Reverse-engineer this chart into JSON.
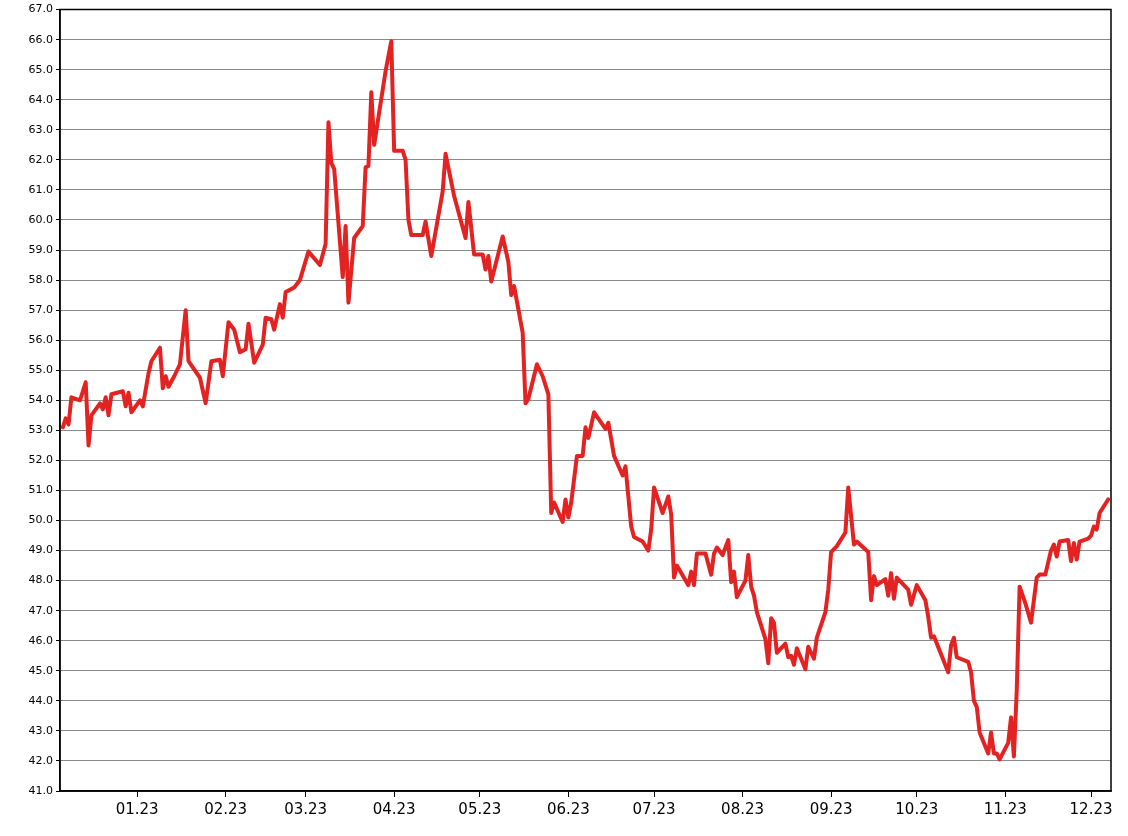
{
  "chart_data": {
    "type": "line",
    "color": "#e32222",
    "marker": "none",
    "line_style": "solid",
    "grid": "y",
    "legend": false,
    "xlim": [
      "2022-12-05",
      "2023-12-08"
    ],
    "xticks": [
      {
        "value": "2023-01-01",
        "label": "01.23"
      },
      {
        "value": "2023-02-01",
        "label": "02.23"
      },
      {
        "value": "2023-03-01",
        "label": "03.23"
      },
      {
        "value": "2023-04-01",
        "label": "04.23"
      },
      {
        "value": "2023-05-01",
        "label": "05.23"
      },
      {
        "value": "2023-06-01",
        "label": "06.23"
      },
      {
        "value": "2023-07-01",
        "label": "07.23"
      },
      {
        "value": "2023-08-01",
        "label": "08.23"
      },
      {
        "value": "2023-09-01",
        "label": "09.23"
      },
      {
        "value": "2023-10-01",
        "label": "10.23"
      },
      {
        "value": "2023-11-01",
        "label": "11.23"
      },
      {
        "value": "2023-12-01",
        "label": "12.23"
      }
    ],
    "ylim": [
      41,
      67
    ],
    "yticks": [
      {
        "value": 41,
        "label": "41.0"
      },
      {
        "value": 42,
        "label": "42.0"
      },
      {
        "value": 43,
        "label": "43.0"
      },
      {
        "value": 44,
        "label": "44.0"
      },
      {
        "value": 45,
        "label": "45.0"
      },
      {
        "value": 46,
        "label": "46.0"
      },
      {
        "value": 47,
        "label": "47.0"
      },
      {
        "value": 48,
        "label": "48.0"
      },
      {
        "value": 49,
        "label": "49.0"
      },
      {
        "value": 50,
        "label": "50.0"
      },
      {
        "value": 51,
        "label": "51.0"
      },
      {
        "value": 52,
        "label": "52.0"
      },
      {
        "value": 53,
        "label": "53.0"
      },
      {
        "value": 54,
        "label": "54.0"
      },
      {
        "value": 55,
        "label": "55.0"
      },
      {
        "value": 56,
        "label": "56.0"
      },
      {
        "value": 57,
        "label": "57.0"
      },
      {
        "value": 58,
        "label": "58.0"
      },
      {
        "value": 59,
        "label": "59.0"
      },
      {
        "value": 60,
        "label": "60.0"
      },
      {
        "value": 61,
        "label": "61.0"
      },
      {
        "value": 62,
        "label": "62.0"
      },
      {
        "value": 63,
        "label": "63.0"
      },
      {
        "value": 64,
        "label": "64.0"
      },
      {
        "value": 65,
        "label": "65.0"
      },
      {
        "value": 66,
        "label": "66.0"
      },
      {
        "value": 67,
        "label": "67.0"
      }
    ],
    "x": [
      "2022-12-06",
      "2022-12-07",
      "2022-12-08",
      "2022-12-09",
      "2022-12-12",
      "2022-12-14",
      "2022-12-15",
      "2022-12-16",
      "2022-12-19",
      "2022-12-20",
      "2022-12-21",
      "2022-12-22",
      "2022-12-23",
      "2022-12-27",
      "2022-12-28",
      "2022-12-29",
      "2022-12-30",
      "2023-01-02",
      "2023-01-03",
      "2023-01-05",
      "2023-01-06",
      "2023-01-09",
      "2023-01-10",
      "2023-01-11",
      "2023-01-12",
      "2023-01-14",
      "2023-01-16",
      "2023-01-18",
      "2023-01-19",
      "2023-01-23",
      "2023-01-25",
      "2023-01-27",
      "2023-01-30",
      "2023-01-31",
      "2023-02-02",
      "2023-02-04",
      "2023-02-06",
      "2023-02-08",
      "2023-02-09",
      "2023-02-11",
      "2023-02-14",
      "2023-02-15",
      "2023-02-17",
      "2023-02-18",
      "2023-02-20",
      "2023-02-21",
      "2023-02-22",
      "2023-02-25",
      "2023-02-27",
      "2023-03-02",
      "2023-03-06",
      "2023-03-08",
      "2023-03-09",
      "2023-03-10",
      "2023-03-11",
      "2023-03-14",
      "2023-03-15",
      "2023-03-16",
      "2023-03-18",
      "2023-03-21",
      "2023-03-22",
      "2023-03-23",
      "2023-03-24",
      "2023-03-25",
      "2023-03-29",
      "2023-03-31",
      "2023-04-01",
      "2023-04-04",
      "2023-04-05",
      "2023-04-06",
      "2023-04-07",
      "2023-04-11",
      "2023-04-12",
      "2023-04-14",
      "2023-04-18",
      "2023-04-19",
      "2023-04-22",
      "2023-04-26",
      "2023-04-27",
      "2023-04-29",
      "2023-05-02",
      "2023-05-03",
      "2023-05-04",
      "2023-05-05",
      "2023-05-09",
      "2023-05-11",
      "2023-05-12",
      "2023-05-13",
      "2023-05-16",
      "2023-05-17",
      "2023-05-18",
      "2023-05-21",
      "2023-05-23",
      "2023-05-25",
      "2023-05-26",
      "2023-05-27",
      "2023-05-30",
      "2023-05-31",
      "2023-06-01",
      "2023-06-02",
      "2023-06-04",
      "2023-06-06",
      "2023-06-07",
      "2023-06-08",
      "2023-06-10",
      "2023-06-14",
      "2023-06-15",
      "2023-06-17",
      "2023-06-20",
      "2023-06-21",
      "2023-06-23",
      "2023-06-24",
      "2023-06-27",
      "2023-06-29",
      "2023-06-30",
      "2023-07-01",
      "2023-07-04",
      "2023-07-06",
      "2023-07-07",
      "2023-07-08",
      "2023-07-09",
      "2023-07-13",
      "2023-07-14",
      "2023-07-15",
      "2023-07-16",
      "2023-07-19",
      "2023-07-21",
      "2023-07-22",
      "2023-07-23",
      "2023-07-25",
      "2023-07-27",
      "2023-07-28",
      "2023-07-29",
      "2023-07-30",
      "2023-08-02",
      "2023-08-03",
      "2023-08-04",
      "2023-08-05",
      "2023-08-06",
      "2023-08-09",
      "2023-08-10",
      "2023-08-11",
      "2023-08-12",
      "2023-08-13",
      "2023-08-16",
      "2023-08-17",
      "2023-08-18",
      "2023-08-19",
      "2023-08-20",
      "2023-08-23",
      "2023-08-24",
      "2023-08-26",
      "2023-08-27",
      "2023-08-30",
      "2023-08-31",
      "2023-09-01",
      "2023-09-03",
      "2023-09-06",
      "2023-09-07",
      "2023-09-09",
      "2023-09-10",
      "2023-09-14",
      "2023-09-15",
      "2023-09-16",
      "2023-09-17",
      "2023-09-20",
      "2023-09-21",
      "2023-09-22",
      "2023-09-23",
      "2023-09-24",
      "2023-09-28",
      "2023-09-29",
      "2023-10-01",
      "2023-10-04",
      "2023-10-05",
      "2023-10-06",
      "2023-10-07",
      "2023-10-12",
      "2023-10-13",
      "2023-10-14",
      "2023-10-15",
      "2023-10-19",
      "2023-10-20",
      "2023-10-21",
      "2023-10-22",
      "2023-10-23",
      "2023-10-26",
      "2023-10-27",
      "2023-10-28",
      "2023-10-29",
      "2023-10-30",
      "2023-11-02",
      "2023-11-03",
      "2023-11-04",
      "2023-11-05",
      "2023-11-06",
      "2023-11-08",
      "2023-11-10",
      "2023-11-12",
      "2023-11-13",
      "2023-11-15",
      "2023-11-17",
      "2023-11-18",
      "2023-11-19",
      "2023-11-20",
      "2023-11-23",
      "2023-11-24",
      "2023-11-25",
      "2023-11-26",
      "2023-11-27",
      "2023-11-30",
      "2023-12-01",
      "2023-12-02",
      "2023-12-03",
      "2023-12-04",
      "2023-12-05",
      "2023-12-07"
    ],
    "values": [
      53.1,
      53.4,
      53.2,
      54.1,
      54.0,
      54.6,
      52.5,
      53.5,
      53.9,
      53.7,
      54.1,
      53.5,
      54.2,
      54.3,
      53.8,
      54.25,
      53.6,
      54.0,
      53.8,
      54.9,
      55.3,
      55.75,
      54.4,
      54.8,
      54.45,
      54.8,
      55.2,
      57.0,
      55.3,
      54.75,
      53.9,
      55.3,
      55.35,
      54.8,
      56.6,
      56.35,
      55.6,
      55.7,
      56.55,
      55.25,
      55.85,
      56.75,
      56.7,
      56.35,
      57.2,
      56.75,
      57.6,
      57.75,
      58.0,
      58.95,
      58.5,
      59.2,
      63.25,
      61.9,
      61.7,
      58.1,
      59.8,
      57.25,
      59.4,
      59.8,
      61.75,
      61.8,
      64.25,
      62.5,
      64.95,
      65.95,
      62.3,
      62.3,
      62.0,
      60.0,
      59.5,
      59.5,
      59.95,
      58.8,
      60.95,
      62.2,
      60.8,
      59.4,
      60.6,
      58.85,
      58.85,
      58.35,
      58.8,
      57.95,
      59.45,
      58.6,
      57.5,
      57.8,
      56.25,
      53.9,
      54.05,
      55.2,
      54.8,
      54.2,
      50.25,
      50.6,
      49.95,
      50.7,
      50.1,
      50.6,
      52.15,
      52.15,
      53.1,
      52.75,
      53.6,
      53.05,
      53.25,
      52.15,
      51.5,
      51.8,
      49.8,
      49.45,
      49.3,
      49.0,
      49.7,
      51.1,
      50.25,
      50.8,
      50.2,
      48.1,
      48.5,
      47.85,
      48.3,
      47.85,
      48.9,
      48.9,
      48.2,
      48.9,
      49.1,
      48.85,
      49.35,
      47.95,
      48.3,
      47.45,
      48.0,
      48.85,
      47.8,
      47.5,
      46.95,
      46.05,
      45.25,
      46.75,
      46.6,
      45.6,
      45.9,
      45.45,
      45.5,
      45.2,
      45.75,
      45.05,
      45.8,
      45.4,
      46.1,
      46.95,
      47.7,
      48.95,
      49.15,
      49.6,
      51.1,
      49.2,
      49.3,
      48.95,
      47.35,
      48.15,
      47.85,
      48.05,
      47.5,
      48.25,
      47.4,
      48.1,
      47.7,
      47.2,
      47.85,
      47.35,
      46.8,
      46.1,
      46.15,
      44.95,
      45.85,
      46.1,
      45.45,
      45.3,
      44.95,
      44.0,
      43.8,
      42.95,
      42.25,
      42.95,
      42.25,
      42.25,
      42.05,
      42.6,
      43.45,
      42.15,
      44.35,
      47.8,
      47.25,
      46.6,
      48.1,
      48.2,
      48.2,
      49.0,
      49.2,
      48.8,
      49.3,
      49.35,
      48.65,
      49.25,
      48.7,
      49.3,
      49.4,
      49.5,
      49.8,
      49.7,
      50.25,
      50.4,
      50.7
    ]
  }
}
